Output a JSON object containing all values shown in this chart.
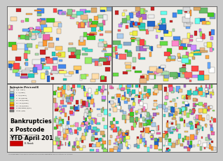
{
  "title": "Bankruptcies\nx Postcode\nYTD April 2012",
  "legend_title": "Bankruptcies (Pcts in and B)",
  "legend_items": [
    {
      "label": "0 (0 - 2981)",
      "color": "#ffffff"
    },
    {
      "label": "1 - 3 (2982)",
      "color": "#add8e6"
    },
    {
      "label": "4 - 6 (3/2000)",
      "color": "#4169e1"
    },
    {
      "label": "7 - 10 (3/4000)",
      "color": "#00ced1"
    },
    {
      "label": "11 - 20 (4/3000)",
      "color": "#90ee90"
    },
    {
      "label": "21 - 40 (4/5000)",
      "color": "#ffd700"
    },
    {
      "label": "41 - 60 (4/5000)",
      "color": "#ff8c00"
    },
    {
      "label": "61 and above (3/90)",
      "color": "#dc143c"
    },
    {
      "label": "Other (3/90)",
      "color": "#808080"
    }
  ],
  "bg_color": "#c8c8c8",
  "map_colors": [
    "#ff6666",
    "#ff4444",
    "#cc2222",
    "#ff9933",
    "#ffaa44",
    "#ffcc66",
    "#ffff66",
    "#eeee44",
    "#99ee66",
    "#66dd44",
    "#44cc22",
    "#44ddcc",
    "#22ccbb",
    "#66ffee",
    "#66aaff",
    "#4488ee",
    "#2266cc",
    "#cc88ff",
    "#aa66cc",
    "#ff88cc",
    "#ee66aa",
    "#ffffff",
    "#eeeeee",
    "#dddddd",
    "#aaddaa",
    "#88cc88",
    "#66bb66",
    "#ffddaa",
    "#eebb88",
    "#ddaa66",
    "#aaccee",
    "#88aacc"
  ],
  "subtitle": "Data from Australian Government\nInsolvency and Trustee Service\nhttp://www.itsa.gov.au\nwww.macromonitor.com.au/bankruptcies",
  "note": "B. Nowak",
  "footer": "* This map shows the geographic distribution of individual bankruptcies across Australia YTD April 2012"
}
